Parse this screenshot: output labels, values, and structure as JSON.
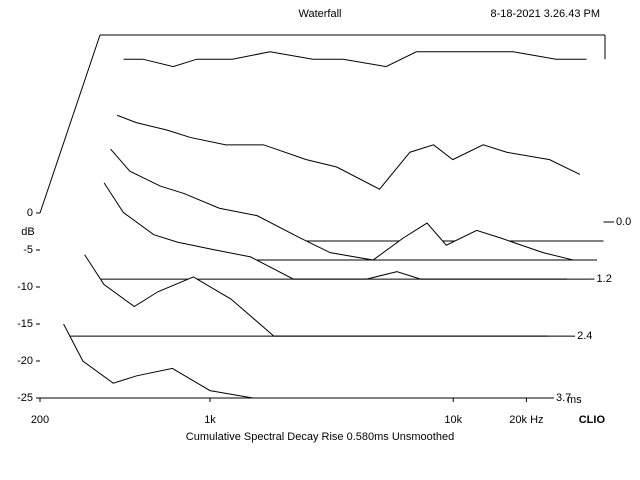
{
  "chart_data": {
    "type": "waterfall",
    "title": "Waterfall",
    "timestamp": "8-18-2021 3.26.43 PM",
    "subtitle": "Cumulative Spectral Decay   Rise 0.580ms   Unsmoothed",
    "brand": "CLIO",
    "y_label": "dB",
    "z_label": "ms",
    "log_x": true,
    "color": "#000000",
    "xlim": [
      200,
      25000
    ],
    "xticks": [
      200,
      {
        "value": 1000,
        "label": "1k"
      },
      {
        "value": 10000,
        "label": "10k"
      },
      {
        "value": 20000,
        "label": "20k Hz"
      }
    ],
    "ylim": [
      -25,
      0
    ],
    "yticks": [
      0,
      -5,
      -10,
      -15,
      -20,
      -25
    ],
    "zlim": [
      0,
      3.7
    ],
    "zticks": [
      {
        "value": 0,
        "label": "0.0"
      },
      1.2,
      2.4,
      3.7
    ],
    "x": [
      250,
      300,
      400,
      500,
      700,
      1000,
      1500,
      2000,
      3000,
      4000,
      5000,
      6000,
      8000,
      10000,
      15000,
      20000
    ],
    "slices": [
      {
        "t": 0,
        "values": [
          -3,
          -3,
          -4,
          -3,
          -3,
          -2,
          -3,
          -3,
          -4,
          -2,
          -2,
          -2,
          -2,
          -2,
          -3,
          -3
        ]
      },
      {
        "t": 0.4,
        "values": [
          -8,
          -9,
          -10,
          -11,
          -12,
          -12,
          -14,
          -15,
          -18,
          -13,
          -12,
          -14,
          -12,
          -13,
          -14,
          -16
        ]
      },
      {
        "t": 0.8,
        "values": [
          -10,
          -13,
          -15,
          -16,
          -18,
          -19,
          -22,
          -24,
          -25,
          -22,
          -20,
          -23,
          -21,
          -22,
          -24,
          -25
        ]
      },
      {
        "t": 1.2,
        "values": [
          -12,
          -16,
          -19,
          -20,
          -21,
          -22,
          -25,
          -25,
          -25,
          -24,
          -25,
          -25,
          -25,
          -25,
          -25,
          -25
        ]
      },
      {
        "t": 2.4,
        "values": [
          -14,
          -18,
          -21,
          -19,
          -17,
          -20,
          -25,
          -25,
          -25,
          -25,
          -25,
          -25,
          -25,
          -25,
          -25,
          -25
        ]
      },
      {
        "t": 3.7,
        "values": [
          -15,
          -20,
          -23,
          -22,
          -21,
          -24,
          -25,
          -25,
          -25,
          -25,
          -25,
          -25,
          -25,
          -25,
          -25,
          -25
        ]
      }
    ]
  }
}
